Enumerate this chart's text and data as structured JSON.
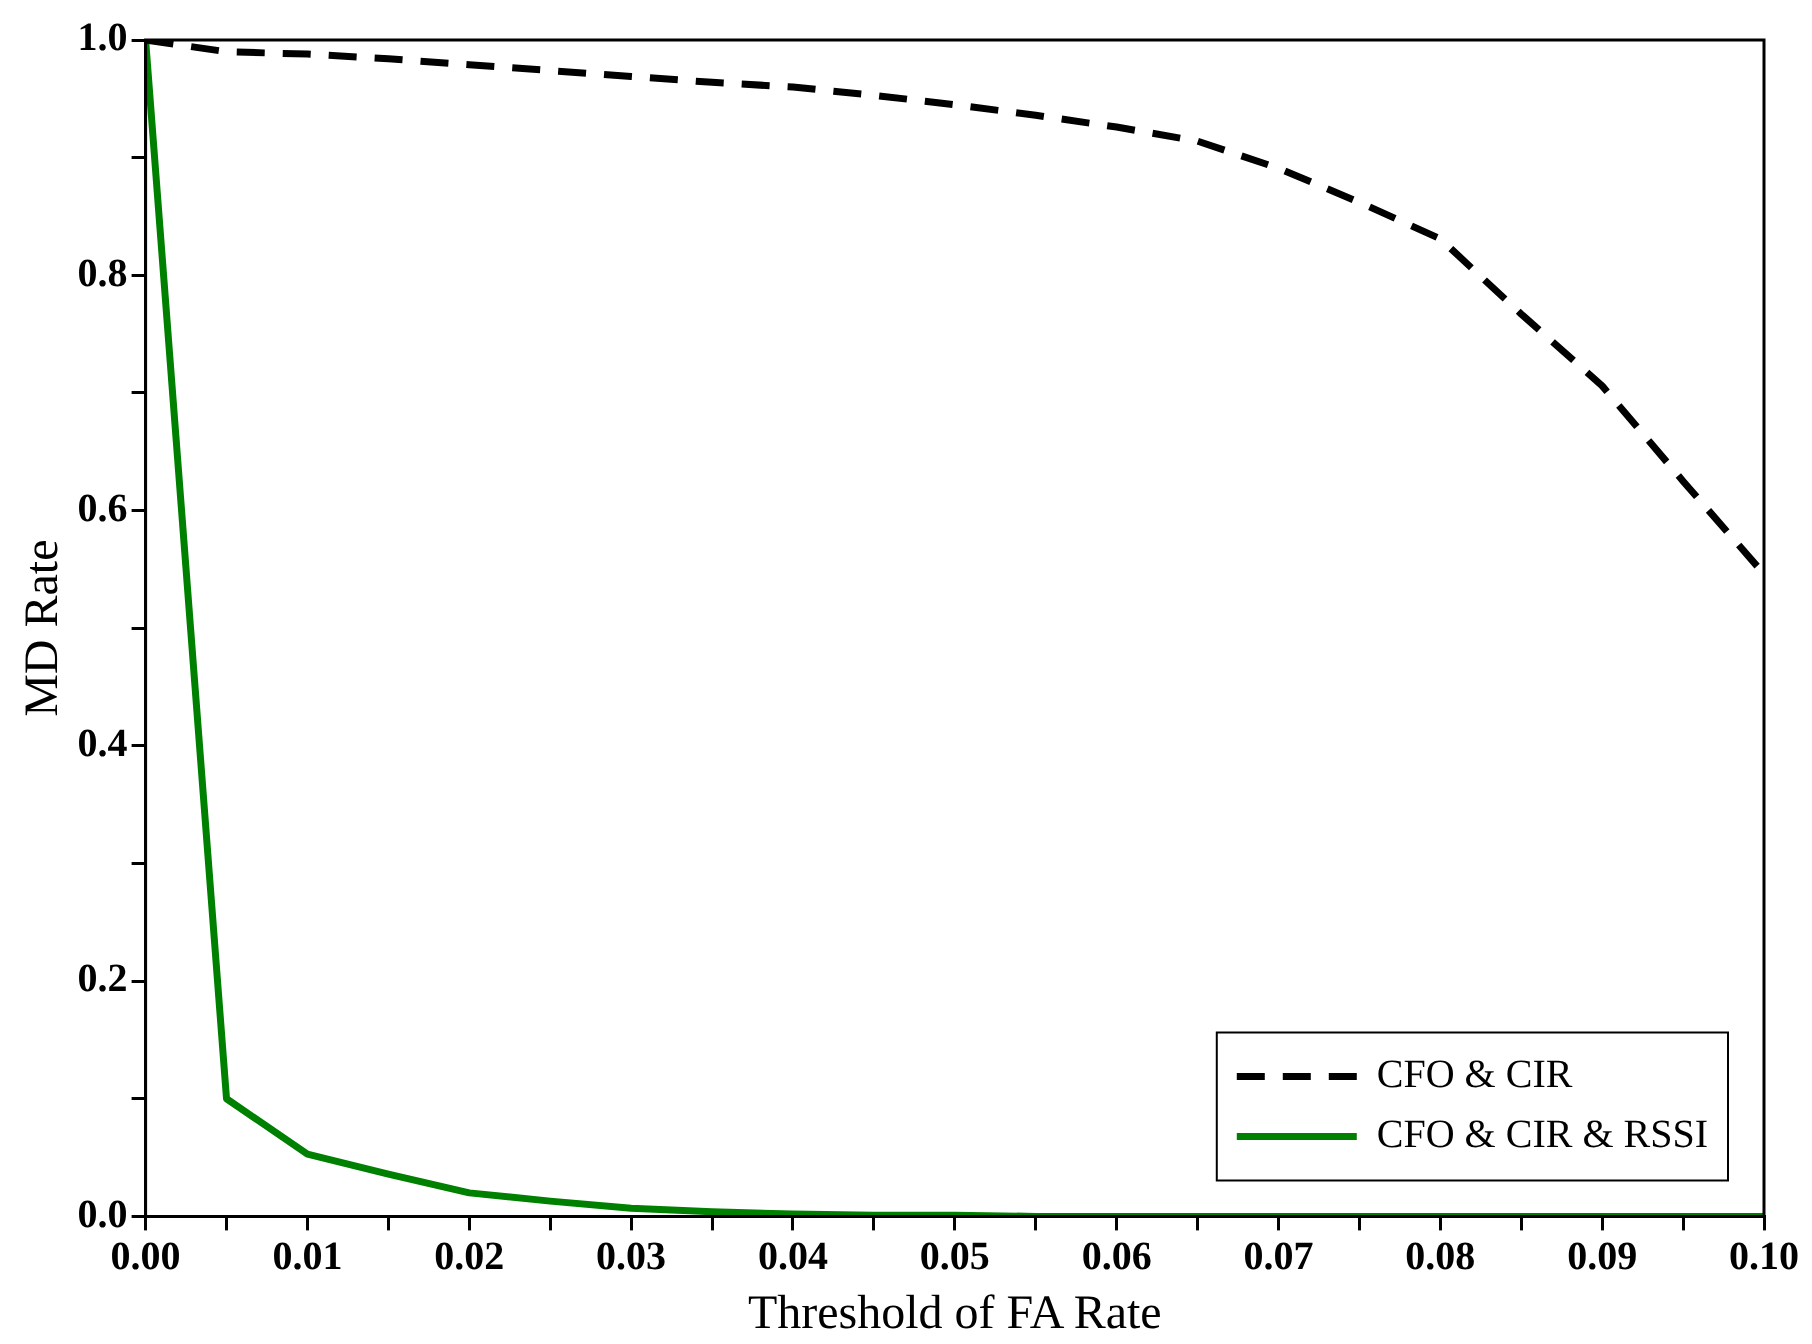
{
  "chart_data": {
    "type": "line",
    "xlabel": "Threshold of FA Rate",
    "ylabel": "MD Rate",
    "x": [
      0,
      0.005,
      0.01,
      0.015,
      0.02,
      0.025,
      0.03,
      0.035,
      0.04,
      0.045,
      0.05,
      0.055,
      0.06,
      0.065,
      0.07,
      0.075,
      0.08,
      0.085,
      0.09,
      0.095,
      0.1
    ],
    "series": [
      {
        "name": "CFO & CIR",
        "color": "#000000",
        "line_style": "dashed",
        "values": [
          1.0,
          0.99,
          0.988,
          0.984,
          0.979,
          0.974,
          0.969,
          0.964,
          0.96,
          0.953,
          0.945,
          0.936,
          0.926,
          0.914,
          0.891,
          0.862,
          0.831,
          0.767,
          0.706,
          0.625,
          0.546
        ]
      },
      {
        "name": "CFO & CIR & RSSI",
        "color": "#008000",
        "line_style": "solid",
        "values": [
          1.0,
          0.1,
          0.053,
          0.036,
          0.02,
          0.013,
          0.007,
          0.004,
          0.002,
          0.001,
          0.001,
          0,
          0,
          0,
          0,
          0,
          0,
          0,
          0,
          0,
          0
        ]
      }
    ],
    "xlim": [
      0,
      0.1
    ],
    "xticks": [
      {
        "value": 0,
        "label": "0.00"
      },
      {
        "value": 0.005,
        "label": null
      },
      {
        "value": 0.01,
        "label": "0.01"
      },
      {
        "value": 0.015,
        "label": null
      },
      {
        "value": 0.02,
        "label": "0.02"
      },
      {
        "value": 0.025,
        "label": null
      },
      {
        "value": 0.03,
        "label": "0.03"
      },
      {
        "value": 0.035,
        "label": null
      },
      {
        "value": 0.04,
        "label": "0.04"
      },
      {
        "value": 0.045,
        "label": null
      },
      {
        "value": 0.05,
        "label": "0.05"
      },
      {
        "value": 0.055,
        "label": null
      },
      {
        "value": 0.06,
        "label": "0.06"
      },
      {
        "value": 0.065,
        "label": null
      },
      {
        "value": 0.07,
        "label": "0.07"
      },
      {
        "value": 0.075,
        "label": null
      },
      {
        "value": 0.08,
        "label": "0.08"
      },
      {
        "value": 0.085,
        "label": null
      },
      {
        "value": 0.09,
        "label": "0.09"
      },
      {
        "value": 0.095,
        "label": null
      },
      {
        "value": 0.1,
        "label": "0.10"
      }
    ],
    "ylim": [
      0,
      1
    ],
    "yticks": [
      {
        "value": 0,
        "label": "0.0"
      },
      {
        "value": 0.1,
        "label": null
      },
      {
        "value": 0.2,
        "label": "0.2"
      },
      {
        "value": 0.3,
        "label": null
      },
      {
        "value": 0.4,
        "label": "0.4"
      },
      {
        "value": 0.5,
        "label": null
      },
      {
        "value": 0.6,
        "label": "0.6"
      },
      {
        "value": 0.7,
        "label": null
      },
      {
        "value": 0.8,
        "label": "0.8"
      },
      {
        "value": 0.9,
        "label": null
      },
      {
        "value": 1.0,
        "label": "1.0"
      }
    ],
    "grid": false,
    "legend": "bottom right",
    "marker": "none"
  }
}
